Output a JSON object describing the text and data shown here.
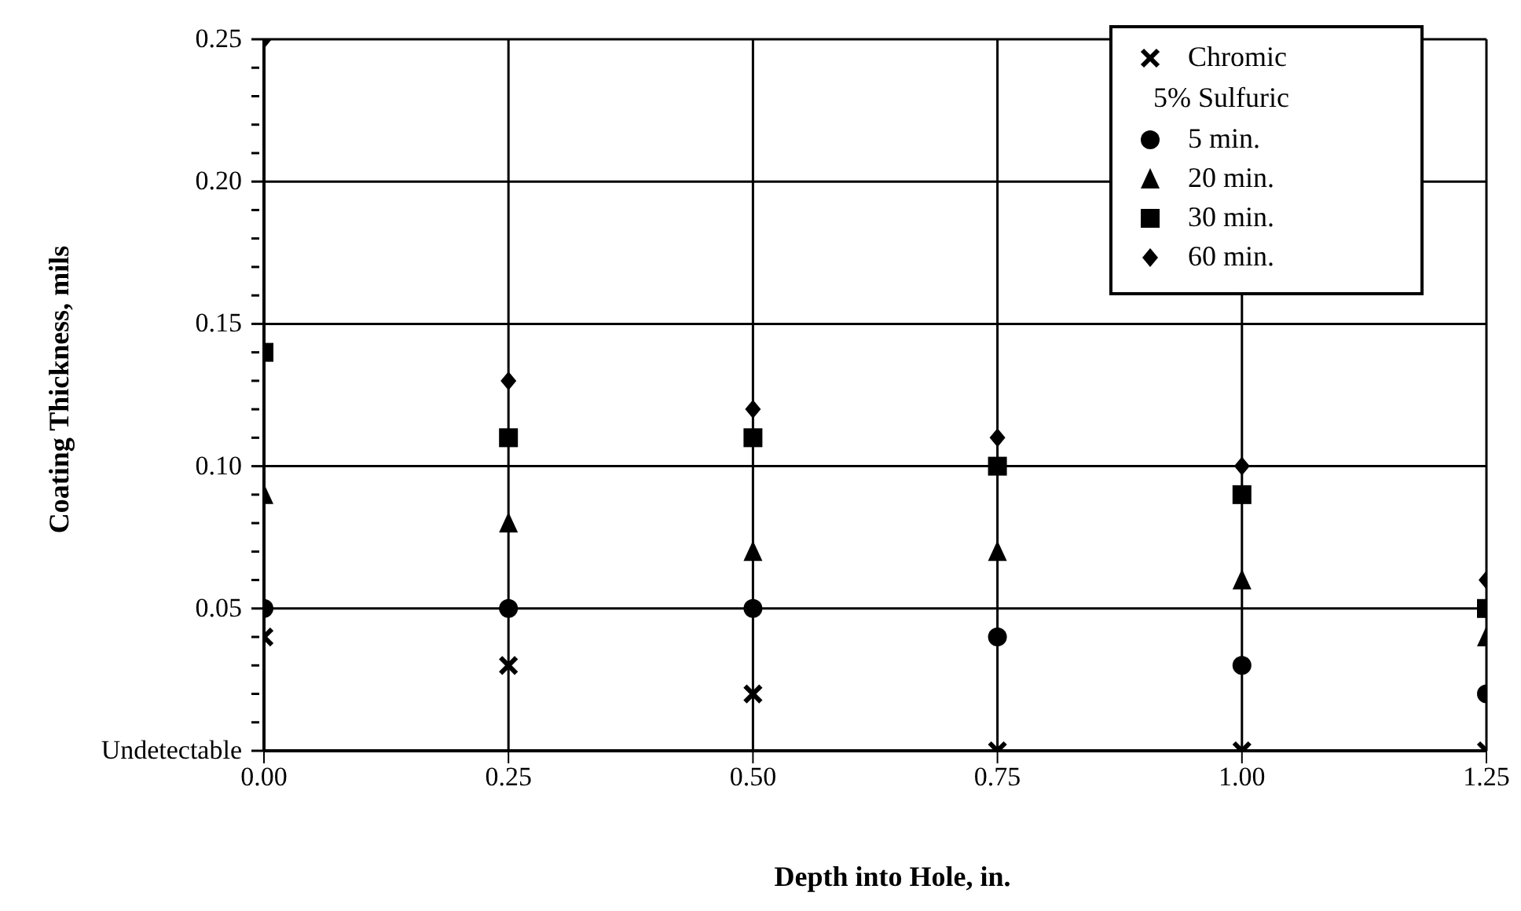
{
  "chart_data": {
    "type": "scatter",
    "xlabel": "Depth into Hole, in.",
    "ylabel": "Coating Thickness, mils",
    "legend_title": "5% Sulfuric",
    "x": [
      0,
      0.25,
      0.5,
      0.75,
      1.0,
      1.25
    ],
    "series": [
      {
        "name": "Chromic",
        "color": "#000000",
        "marker": "cross",
        "values": [
          0.04,
          0.03,
          0.02,
          0,
          0,
          0
        ]
      },
      {
        "name": "5 min.",
        "color": "#000000",
        "marker": "circle",
        "values": [
          0.05,
          0.05,
          0.05,
          0.04,
          0.03,
          0.02
        ]
      },
      {
        "name": "20 min.",
        "color": "#000000",
        "marker": "triangle",
        "values": [
          0.09,
          0.08,
          0.07,
          0.07,
          0.06,
          0.04
        ]
      },
      {
        "name": "30 min.",
        "color": "#000000",
        "marker": "square",
        "values": [
          0.14,
          0.11,
          0.11,
          0.1,
          0.09,
          0.05
        ]
      },
      {
        "name": "60 min.",
        "color": "#000000",
        "marker": "diamond",
        "values": [
          0.25,
          0.13,
          0.12,
          0.11,
          0.1,
          0.06
        ]
      }
    ],
    "xlim": [
      0,
      1.25
    ],
    "xticks": [
      {
        "value": 0,
        "label": "0.00"
      },
      0.25,
      {
        "value": 0.5,
        "label": "0.50"
      },
      0.75,
      {
        "value": 1,
        "label": "1.00"
      },
      1.25
    ],
    "ylim": [
      0,
      0.25
    ],
    "yticks": [
      {
        "value": 0,
        "label": "Undetectable"
      },
      {
        "value": 0.01,
        "label": null
      },
      {
        "value": 0.02,
        "label": null
      },
      {
        "value": 0.03,
        "label": null
      },
      {
        "value": 0.04,
        "label": null
      },
      0.05,
      {
        "value": 0.06,
        "label": null
      },
      {
        "value": 0.07,
        "label": null
      },
      {
        "value": 0.08,
        "label": null
      },
      {
        "value": 0.09,
        "label": null
      },
      {
        "value": 0.1,
        "label": "0.10"
      },
      {
        "value": 0.11,
        "label": null
      },
      {
        "value": 0.12,
        "label": null
      },
      {
        "value": 0.13,
        "label": null
      },
      {
        "value": 0.14,
        "label": null
      },
      0.15,
      {
        "value": 0.16,
        "label": null
      },
      {
        "value": 0.17,
        "label": null
      },
      {
        "value": 0.18,
        "label": null
      },
      {
        "value": 0.19,
        "label": null
      },
      {
        "value": 0.2,
        "label": "0.20"
      },
      {
        "value": 0.21,
        "label": null
      },
      {
        "value": 0.22,
        "label": null
      },
      {
        "value": 0.23,
        "label": null
      },
      {
        "value": 0.24,
        "label": null
      },
      0.25
    ],
    "grid": true,
    "legend": "top right"
  }
}
